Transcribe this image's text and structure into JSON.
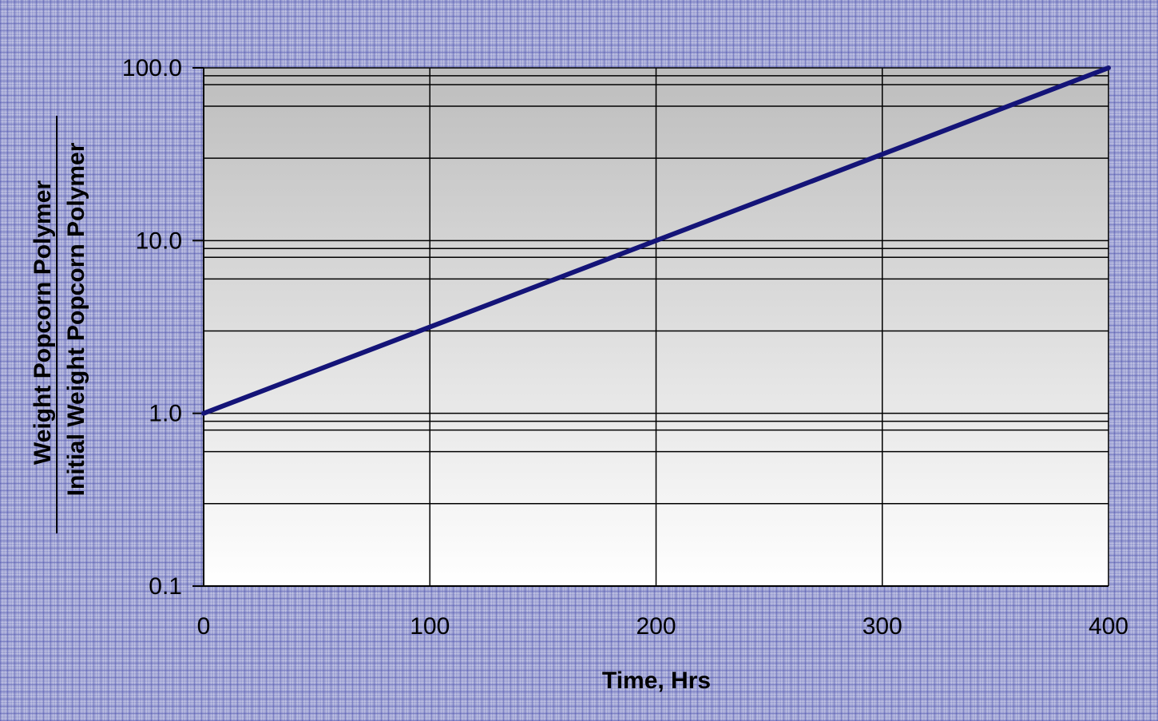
{
  "chart_data": {
    "type": "line",
    "title": "",
    "xlabel": "Time, Hrs",
    "ylabel_numerator": "Weight Popcorn Polymer",
    "ylabel_denominator": "Initial Weight Popcorn Polymer",
    "x_scale": "linear",
    "y_scale": "log",
    "xlim": [
      0,
      400
    ],
    "ylim": [
      0.1,
      100
    ],
    "x_ticks": [
      0,
      100,
      200,
      300,
      400
    ],
    "x_tick_labels": [
      "0",
      "100",
      "200",
      "300",
      "400"
    ],
    "y_ticks": [
      0.1,
      1,
      10,
      100
    ],
    "y_tick_labels": [
      "0.1",
      "1.0",
      "10.0",
      "100.0"
    ],
    "grid": true,
    "legend": "none",
    "series": [
      {
        "x": [
          0,
          100,
          200,
          300,
          400
        ],
        "y": [
          1.0,
          3.16,
          10.0,
          31.6,
          100.0
        ],
        "color": "#141478"
      }
    ],
    "colors": {
      "plot_bg_top": "#bdbdbd",
      "plot_bg_bottom": "#ffffff",
      "grid": "#000000",
      "line": "#141478"
    }
  }
}
